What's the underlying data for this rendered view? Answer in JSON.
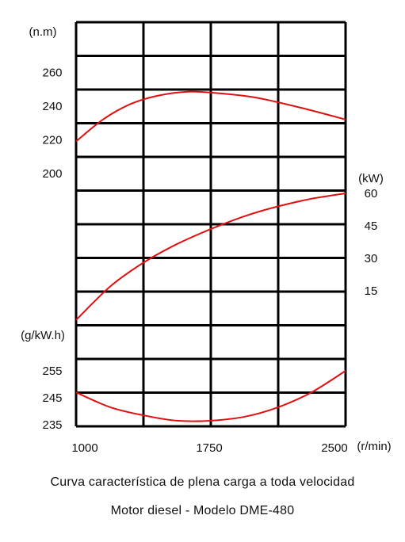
{
  "chart_data": {
    "type": "line",
    "title": "Curva característica de plena carga a toda velocidad",
    "subtitle": "Motor diesel - Modelo DME-480",
    "x_axis": {
      "unit": "(r/min)",
      "range": [
        1000,
        2500
      ],
      "ticks": [
        {
          "value": 1000,
          "label": "1000"
        },
        {
          "value": 1750,
          "label": "1750"
        },
        {
          "value": 2500,
          "label": "2500"
        }
      ],
      "grid_divisions": 4
    },
    "grid": true,
    "line_color": "#e01010",
    "panels": [
      {
        "id": "torque",
        "unit": "(n.m)",
        "axis_side": "left",
        "range": [
          190,
          270
        ],
        "ticks": [
          {
            "value": 260,
            "label": "260"
          },
          {
            "value": 240,
            "label": "240"
          },
          {
            "value": 220,
            "label": "220"
          },
          {
            "value": 200,
            "label": "200"
          }
        ],
        "series": {
          "x": [
            1000,
            1150,
            1300,
            1450,
            1625,
            1800,
            2000,
            2250,
            2500
          ],
          "y": [
            219,
            232,
            241,
            246,
            248.5,
            247.5,
            245,
            239,
            232
          ]
        }
      },
      {
        "id": "power",
        "unit": "(kW)",
        "axis_side": "right",
        "range": [
          0,
          60
        ],
        "ticks": [
          {
            "value": 60,
            "label": "60"
          },
          {
            "value": 45,
            "label": "45"
          },
          {
            "value": 30,
            "label": "30"
          },
          {
            "value": 15,
            "label": "15"
          }
        ],
        "series": {
          "x": [
            1000,
            1190,
            1375,
            1560,
            1750,
            1940,
            2125,
            2310,
            2500
          ],
          "y": [
            1.5,
            17,
            28,
            36.5,
            43.5,
            49.5,
            54,
            57.5,
            60
          ]
        }
      },
      {
        "id": "consumption",
        "unit": "(g/kW.h)",
        "axis_side": "left",
        "range": [
          235,
          260
        ],
        "ticks": [
          {
            "value": 255,
            "label": "255"
          },
          {
            "value": 245,
            "label": "245"
          },
          {
            "value": 235,
            "label": "235"
          }
        ],
        "series": {
          "x": [
            1000,
            1190,
            1375,
            1560,
            1750,
            1940,
            2125,
            2310,
            2500
          ],
          "y": [
            247,
            241.5,
            238.5,
            236.5,
            236.5,
            238,
            241.5,
            247,
            255
          ]
        }
      }
    ]
  }
}
